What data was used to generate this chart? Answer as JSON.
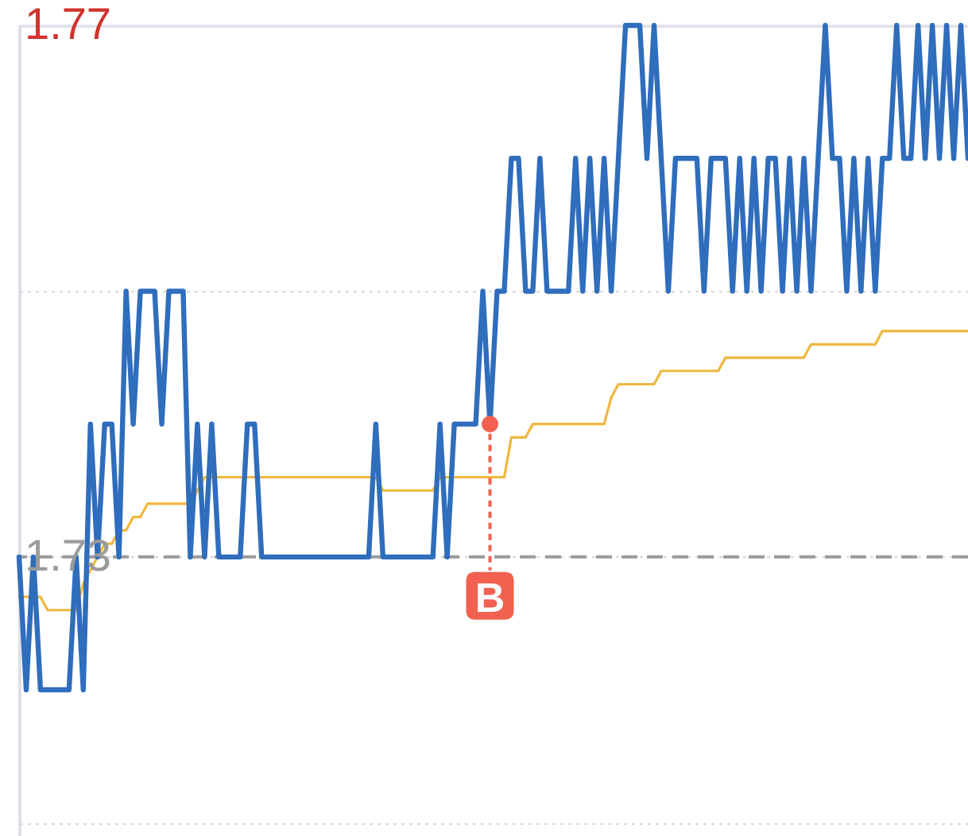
{
  "chart_data": {
    "type": "line",
    "categories": [
      null,
      null,
      null,
      null,
      null,
      null,
      null,
      null,
      null,
      null,
      null,
      null,
      null,
      null,
      null,
      null,
      null,
      null,
      null,
      null,
      null,
      null,
      null,
      null,
      null,
      null,
      null,
      null,
      null,
      null,
      null,
      null,
      null,
      null,
      null,
      null,
      null,
      null,
      null,
      null,
      null,
      null,
      null,
      null,
      null,
      null,
      null,
      null,
      null,
      null,
      null,
      null,
      null,
      null,
      null,
      null,
      null,
      null,
      null,
      null,
      null,
      null,
      null,
      null,
      null,
      null,
      null,
      null,
      null,
      null,
      null,
      null,
      null,
      null,
      null,
      null,
      null,
      null,
      null,
      null,
      null,
      null,
      null,
      null,
      null,
      null,
      null,
      null,
      null,
      null,
      null,
      null,
      null,
      null,
      null,
      null,
      null,
      null,
      null,
      null,
      null,
      null,
      null,
      null,
      null,
      null,
      null,
      null,
      null,
      null,
      null,
      null,
      null,
      null,
      null,
      null,
      null,
      null,
      null,
      null,
      null,
      null,
      null,
      null,
      null,
      null,
      null,
      null,
      null,
      null,
      null,
      null,
      null,
      null
    ],
    "series": [
      {
        "color": "#f0b73e",
        "values": [
          1.727,
          1.727,
          1.727,
          1.727,
          1.726,
          1.726,
          1.726,
          1.726,
          1.726,
          1.728,
          1.729,
          1.73,
          1.731,
          1.731,
          1.732,
          1.732,
          1.733,
          1.733,
          1.734,
          1.734,
          1.734,
          1.734,
          1.734,
          1.734,
          1.734,
          1.735,
          1.736,
          1.736,
          1.736,
          1.736,
          1.736,
          1.736,
          1.736,
          1.736,
          1.736,
          1.736,
          1.736,
          1.736,
          1.736,
          1.736,
          1.736,
          1.736,
          1.736,
          1.736,
          1.736,
          1.736,
          1.736,
          1.736,
          1.736,
          1.736,
          1.736,
          1.735,
          1.735,
          1.735,
          1.735,
          1.735,
          1.735,
          1.735,
          1.735,
          1.736,
          1.736,
          1.736,
          1.736,
          1.736,
          1.736,
          1.736,
          1.736,
          1.736,
          1.736,
          1.739,
          1.739,
          1.739,
          1.74,
          1.74,
          1.74,
          1.74,
          1.74,
          1.74,
          1.74,
          1.74,
          1.74,
          1.74,
          1.74,
          1.742,
          1.743,
          1.743,
          1.743,
          1.743,
          1.743,
          1.743,
          1.744,
          1.744,
          1.744,
          1.744,
          1.744,
          1.744,
          1.744,
          1.744,
          1.744,
          1.745,
          1.745,
          1.745,
          1.745,
          1.745,
          1.745,
          1.745,
          1.745,
          1.745,
          1.745,
          1.745,
          1.745,
          1.746,
          1.746,
          1.746,
          1.746,
          1.746,
          1.746,
          1.746,
          1.746,
          1.746,
          1.746,
          1.747,
          1.747,
          1.747,
          1.747,
          1.747,
          1.747,
          1.747,
          1.747,
          1.747,
          1.747,
          1.747,
          1.747,
          1.747
        ]
      },
      {
        "color": "#2f6dbd",
        "values": [
          1.73,
          1.72,
          1.73,
          1.72,
          1.72,
          1.72,
          1.72,
          1.72,
          1.73,
          1.72,
          1.74,
          1.73,
          1.74,
          1.74,
          1.73,
          1.75,
          1.74,
          1.75,
          1.75,
          1.75,
          1.74,
          1.75,
          1.75,
          1.75,
          1.73,
          1.74,
          1.73,
          1.74,
          1.73,
          1.73,
          1.73,
          1.73,
          1.74,
          1.74,
          1.73,
          1.73,
          1.73,
          1.73,
          1.73,
          1.73,
          1.73,
          1.73,
          1.73,
          1.73,
          1.73,
          1.73,
          1.73,
          1.73,
          1.73,
          1.73,
          1.74,
          1.73,
          1.73,
          1.73,
          1.73,
          1.73,
          1.73,
          1.73,
          1.73,
          1.74,
          1.73,
          1.74,
          1.74,
          1.74,
          1.74,
          1.75,
          1.74,
          1.75,
          1.75,
          1.76,
          1.76,
          1.75,
          1.75,
          1.76,
          1.75,
          1.75,
          1.75,
          1.75,
          1.76,
          1.75,
          1.76,
          1.75,
          1.76,
          1.75,
          1.76,
          1.77,
          1.77,
          1.77,
          1.76,
          1.77,
          1.76,
          1.75,
          1.76,
          1.76,
          1.76,
          1.76,
          1.75,
          1.76,
          1.76,
          1.76,
          1.75,
          1.76,
          1.75,
          1.76,
          1.75,
          1.76,
          1.76,
          1.75,
          1.76,
          1.75,
          1.76,
          1.75,
          1.76,
          1.77,
          1.76,
          1.76,
          1.75,
          1.76,
          1.75,
          1.76,
          1.75,
          1.76,
          1.76,
          1.77,
          1.76,
          1.76,
          1.77,
          1.76,
          1.77,
          1.76,
          1.77,
          1.76,
          1.77,
          1.76
        ]
      },
      {
        "type": "scatter",
        "color": "#f2614f",
        "values": [
          null,
          null,
          null,
          null,
          null,
          null,
          null,
          null,
          null,
          null,
          null,
          null,
          null,
          null,
          null,
          null,
          null,
          null,
          null,
          null,
          null,
          null,
          null,
          null,
          null,
          null,
          null,
          null,
          null,
          null,
          null,
          null,
          null,
          null,
          null,
          null,
          null,
          null,
          null,
          null,
          null,
          null,
          null,
          null,
          null,
          null,
          null,
          null,
          null,
          null,
          null,
          null,
          null,
          null,
          null,
          null,
          null,
          null,
          null,
          null,
          null,
          null,
          null,
          null,
          null,
          null,
          1.74,
          null,
          null,
          null,
          null,
          null,
          null,
          null,
          null,
          null,
          null,
          null,
          null,
          null,
          null,
          null,
          null,
          null,
          null,
          null,
          null,
          null,
          null,
          null,
          null,
          null,
          null,
          null,
          null,
          null,
          null,
          null,
          null,
          null,
          null,
          null,
          null,
          null,
          null,
          null,
          null,
          null,
          null,
          null,
          null,
          null,
          null,
          null,
          null,
          null,
          null,
          null,
          null,
          null,
          null,
          null,
          null,
          null,
          null,
          null,
          null,
          null,
          null,
          null,
          null,
          null,
          null,
          null
        ]
      }
    ],
    "ylim": [
      1.709,
      1.77
    ],
    "yticks": [
      1.77,
      {
        "value": 1.75,
        "label": null
      },
      1.73,
      {
        "value": 1.71,
        "label": null
      }
    ],
    "grid": "y",
    "ref_lines": [
      {
        "axis": "y",
        "value": 1.73,
        "color": "#9b9b9b",
        "line_style": "dashed"
      }
    ],
    "annotations": [
      {
        "text": "B",
        "y": 1.74
      }
    ]
  }
}
